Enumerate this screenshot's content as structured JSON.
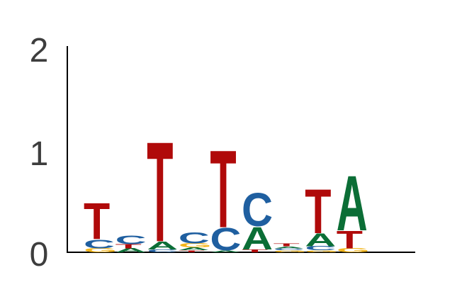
{
  "chart_data": {
    "type": "sequence_logo",
    "title": "",
    "xlabel": "",
    "ylabel": "",
    "ylim": [
      0,
      2
    ],
    "y_ticks": [
      "0",
      "1",
      "2"
    ],
    "colors": {
      "A": "#0b6e36",
      "C": "#1f5fa0",
      "G": "#f2b51b",
      "T": "#b00a0a"
    },
    "positions": [
      {
        "index": 1,
        "letters": [
          {
            "base": "G",
            "height": 0.04
          },
          {
            "base": "C",
            "height": 0.09
          },
          {
            "base": "T",
            "height": 0.37
          }
        ]
      },
      {
        "index": 2,
        "letters": [
          {
            "base": "A",
            "height": 0.04
          },
          {
            "base": "T",
            "height": 0.04
          },
          {
            "base": "C",
            "height": 0.09
          }
        ]
      },
      {
        "index": 3,
        "letters": [
          {
            "base": "C",
            "height": 0.03
          },
          {
            "base": "A",
            "height": 0.08
          },
          {
            "base": "T",
            "height": 1.02
          }
        ]
      },
      {
        "index": 4,
        "letters": [
          {
            "base": "T",
            "height": 0.02
          },
          {
            "base": "A",
            "height": 0.03
          },
          {
            "base": "G",
            "height": 0.04
          },
          {
            "base": "C",
            "height": 0.11
          }
        ]
      },
      {
        "index": 5,
        "letters": [
          {
            "base": "A",
            "height": 0.02
          },
          {
            "base": "C",
            "height": 0.23
          },
          {
            "base": "T",
            "height": 0.79
          }
        ]
      },
      {
        "index": 6,
        "letters": [
          {
            "base": "T",
            "height": 0.03
          },
          {
            "base": "A",
            "height": 0.23
          },
          {
            "base": "C",
            "height": 0.34
          }
        ]
      },
      {
        "index": 7,
        "letters": [
          {
            "base": "G",
            "height": 0.02
          },
          {
            "base": "C",
            "height": 0.02
          },
          {
            "base": "A",
            "height": 0.02
          },
          {
            "base": "T",
            "height": 0.03
          }
        ]
      },
      {
        "index": 8,
        "letters": [
          {
            "base": "G",
            "height": 0.02
          },
          {
            "base": "C",
            "height": 0.04
          },
          {
            "base": "A",
            "height": 0.13
          },
          {
            "base": "T",
            "height": 0.45
          }
        ]
      },
      {
        "index": 9,
        "letters": [
          {
            "base": "G",
            "height": 0.04
          },
          {
            "base": "T",
            "height": 0.18
          },
          {
            "base": "A",
            "height": 0.56
          }
        ]
      }
    ]
  }
}
